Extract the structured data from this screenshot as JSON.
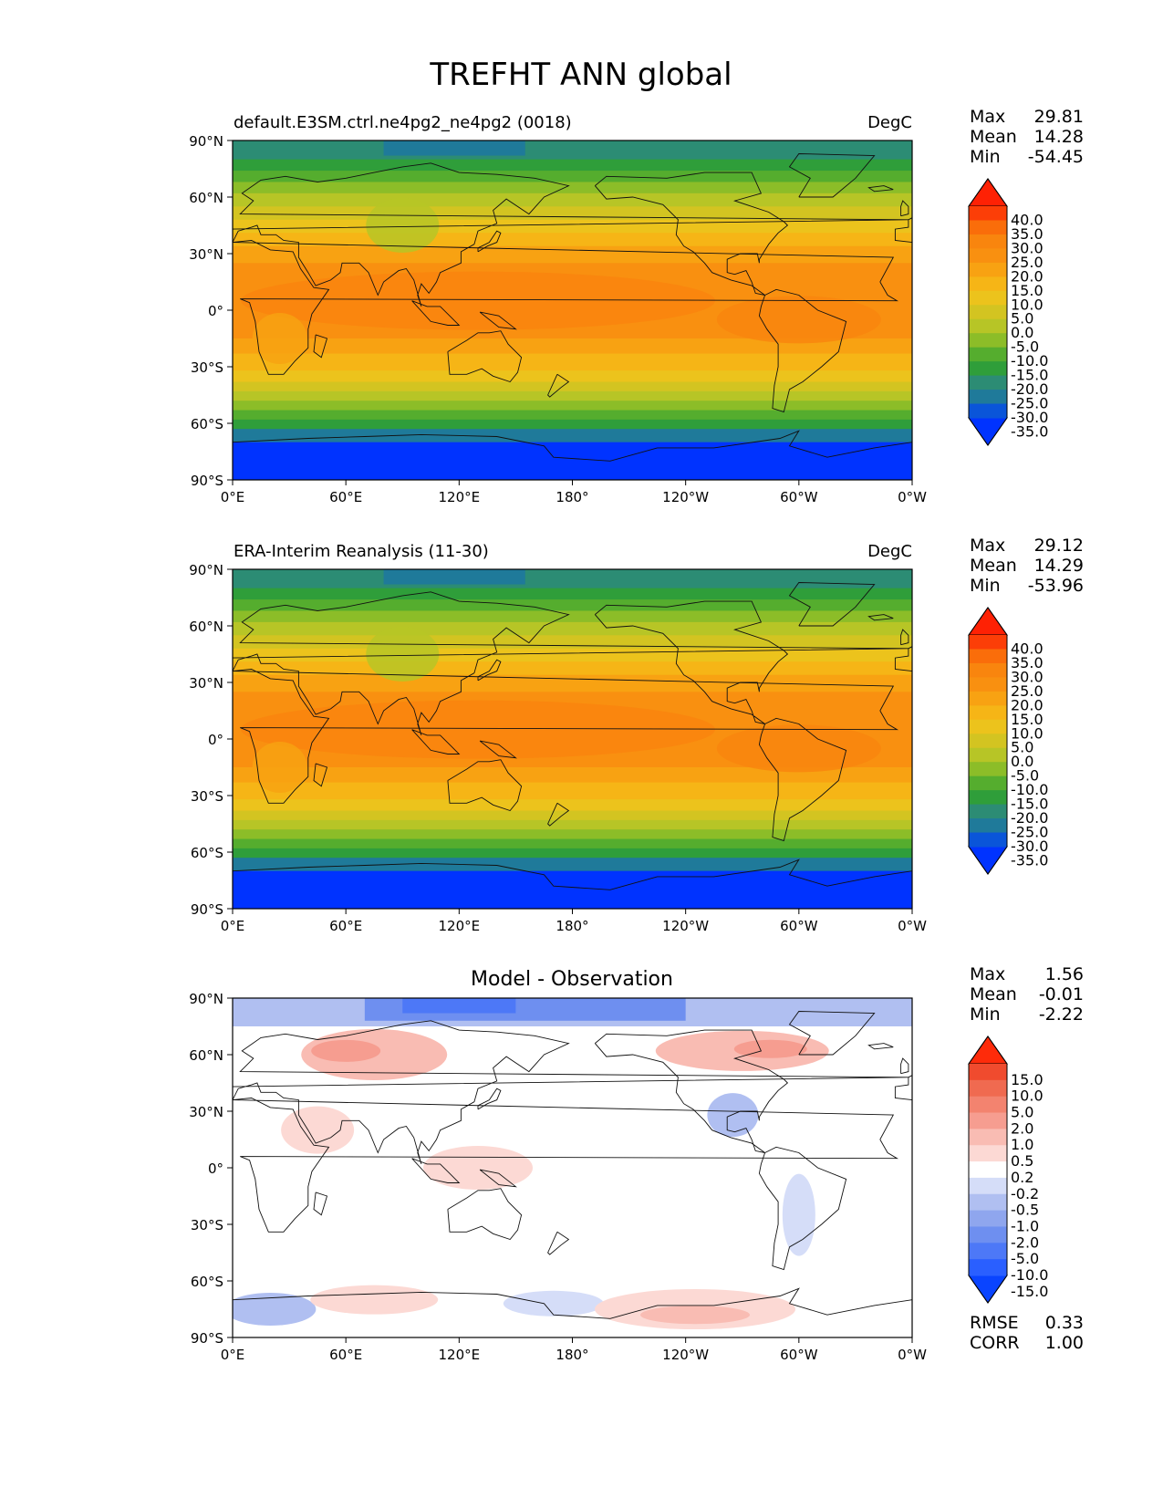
{
  "figure": {
    "title": "TREFHT ANN global"
  },
  "panels": [
    {
      "id": "test",
      "title_left": "default.E3SM.ctrl.ne4pg2_ne4pg2 (0018)",
      "title_right": "DegC",
      "title_center": "",
      "stats": [
        {
          "label": "Max",
          "value": "29.81"
        },
        {
          "label": "Mean",
          "value": "14.28"
        },
        {
          "label": "Min",
          "value": "-54.45"
        }
      ],
      "colorbar": {
        "kind": "temperature",
        "labels": [
          "40.0",
          "35.0",
          "30.0",
          "25.0",
          "20.0",
          "15.0",
          "10.0",
          "5.0",
          "0.0",
          "-5.0",
          "-10.0",
          "-15.0",
          "-20.0",
          "-25.0",
          "-30.0",
          "-35.0"
        ]
      },
      "footer_stats": []
    },
    {
      "id": "reference",
      "title_left": "ERA-Interim Reanalysis (11-30)",
      "title_right": "DegC",
      "title_center": "",
      "stats": [
        {
          "label": "Max",
          "value": "29.12"
        },
        {
          "label": "Mean",
          "value": "14.29"
        },
        {
          "label": "Min",
          "value": "-53.96"
        }
      ],
      "colorbar": {
        "kind": "temperature",
        "labels": [
          "40.0",
          "35.0",
          "30.0",
          "25.0",
          "20.0",
          "15.0",
          "10.0",
          "5.0",
          "0.0",
          "-5.0",
          "-10.0",
          "-15.0",
          "-20.0",
          "-25.0",
          "-30.0",
          "-35.0"
        ]
      },
      "footer_stats": []
    },
    {
      "id": "difference",
      "title_left": "",
      "title_right": "",
      "title_center": "Model - Observation",
      "stats": [
        {
          "label": "Max",
          "value": "1.56"
        },
        {
          "label": "Mean",
          "value": "-0.01"
        },
        {
          "label": "Min",
          "value": "-2.22"
        }
      ],
      "colorbar": {
        "kind": "difference",
        "labels": [
          "15.0",
          "10.0",
          "5.0",
          "2.0",
          "1.0",
          "0.5",
          "0.2",
          "-0.2",
          "-0.5",
          "-1.0",
          "-2.0",
          "-5.0",
          "-10.0",
          "-15.0"
        ]
      },
      "footer_stats": [
        {
          "label": "RMSE",
          "value": "0.33"
        },
        {
          "label": "CORR",
          "value": "1.00"
        }
      ]
    }
  ],
  "axes": {
    "lat_ticks": [
      "90°N",
      "60°N",
      "30°N",
      "0°",
      "30°S",
      "60°S",
      "90°S"
    ],
    "lon_ticks": [
      "0°E",
      "60°E",
      "120°E",
      "180°",
      "120°W",
      "60°W",
      "0°W"
    ]
  },
  "colors": {
    "temperature": [
      "#0033ff",
      "#0a55d9",
      "#1f7a9a",
      "#2c8c74",
      "#2f9e3a",
      "#55ad2e",
      "#8cbd28",
      "#b7c526",
      "#d3c421",
      "#ecc31c",
      "#f6b516",
      "#f8a212",
      "#f99010",
      "#f9850e",
      "#fa6d0a",
      "#fc3e07",
      "#fe2104"
    ],
    "difference": [
      "#0a44ff",
      "#2a5fff",
      "#4d78f7",
      "#6e8ff0",
      "#8fa6ee",
      "#b0bff1",
      "#d5ddf8",
      "#ffffff",
      "#fcd9d4",
      "#f9bcb3",
      "#f69d90",
      "#f3836f",
      "#f06a50",
      "#f04b2e",
      "#fe2b0a"
    ]
  }
}
